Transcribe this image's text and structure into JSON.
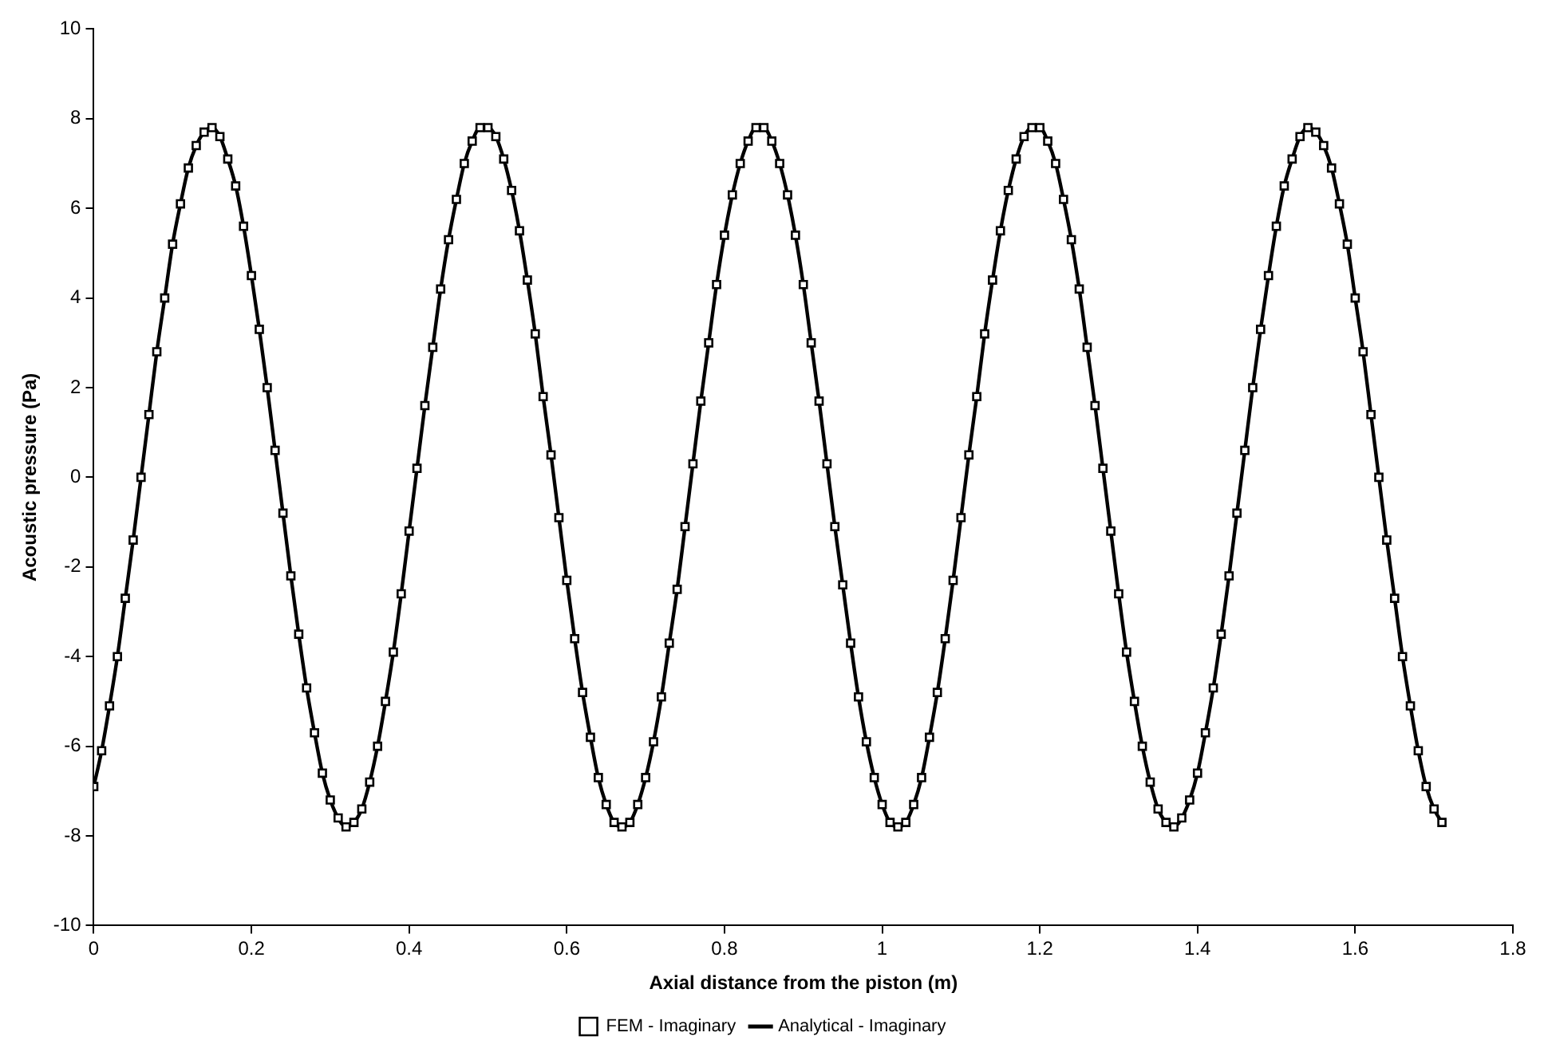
{
  "chart_data": {
    "type": "scatter",
    "xlabel": "Axial distance from the piston (m)",
    "ylabel": "Acoustic pressure (Pa)",
    "x": [
      0,
      0.01,
      0.02,
      0.03,
      0.04,
      0.05,
      0.06,
      0.07,
      0.08,
      0.09,
      0.1,
      0.11,
      0.12,
      0.13,
      0.14,
      0.15,
      0.16,
      0.17,
      0.18,
      0.19,
      0.2,
      0.21,
      0.22,
      0.23,
      0.24,
      0.25,
      0.26,
      0.27,
      0.28,
      0.29,
      0.3,
      0.31,
      0.32,
      0.33,
      0.34,
      0.35,
      0.36,
      0.37,
      0.38,
      0.39,
      0.4,
      0.41,
      0.42,
      0.43,
      0.44,
      0.45,
      0.46,
      0.47,
      0.48,
      0.49,
      0.5,
      0.51,
      0.52,
      0.53,
      0.54,
      0.55,
      0.56,
      0.57,
      0.58,
      0.59,
      0.6,
      0.61,
      0.62,
      0.63,
      0.64,
      0.65,
      0.66,
      0.67,
      0.68,
      0.69,
      0.7,
      0.71,
      0.72,
      0.73,
      0.74,
      0.75,
      0.76,
      0.77,
      0.78,
      0.79,
      0.8,
      0.81,
      0.82,
      0.83,
      0.84,
      0.85,
      0.86,
      0.87,
      0.88,
      0.89,
      0.9,
      0.91,
      0.92,
      0.93,
      0.94,
      0.95,
      0.96,
      0.97,
      0.98,
      0.99,
      1,
      1.01,
      1.02,
      1.03,
      1.04,
      1.05,
      1.06,
      1.07,
      1.08,
      1.09,
      1.1,
      1.11,
      1.12,
      1.13,
      1.14,
      1.15,
      1.16,
      1.17,
      1.18,
      1.19,
      1.2,
      1.21,
      1.22,
      1.23,
      1.24,
      1.25,
      1.26,
      1.27,
      1.28,
      1.29,
      1.3,
      1.31,
      1.32,
      1.33,
      1.34,
      1.35,
      1.36,
      1.37,
      1.38,
      1.39,
      1.4,
      1.41,
      1.42,
      1.43,
      1.44,
      1.45,
      1.46,
      1.47,
      1.48,
      1.49,
      1.5,
      1.51,
      1.52,
      1.53,
      1.54,
      1.55,
      1.56,
      1.57,
      1.58,
      1.59,
      1.6,
      1.61,
      1.62,
      1.63,
      1.64,
      1.65,
      1.66,
      1.67,
      1.68,
      1.69,
      1.7,
      1.71
    ],
    "series": [
      {
        "name": "FEM - Imaginary",
        "marker": "square",
        "color": "#000000",
        "values": [
          -6.9,
          -6.1,
          -5.1,
          -4.0,
          -2.7,
          -1.4,
          0.0,
          1.4,
          2.8,
          4.0,
          5.2,
          6.1,
          6.9,
          7.4,
          7.7,
          7.8,
          7.6,
          7.1,
          6.5,
          5.6,
          4.5,
          3.3,
          2.0,
          0.6,
          -0.8,
          -2.2,
          -3.5,
          -4.7,
          -5.7,
          -6.6,
          -7.2,
          -7.6,
          -7.8,
          -7.7,
          -7.4,
          -6.8,
          -6.0,
          -5.0,
          -3.9,
          -2.6,
          -1.2,
          0.2,
          1.6,
          2.9,
          4.2,
          5.3,
          6.2,
          7.0,
          7.5,
          7.8,
          7.8,
          7.6,
          7.1,
          6.4,
          5.5,
          4.4,
          3.2,
          1.8,
          0.5,
          -0.9,
          -2.3,
          -3.6,
          -4.8,
          -5.8,
          -6.7,
          -7.3,
          -7.7,
          -7.8,
          -7.7,
          -7.3,
          -6.7,
          -5.9,
          -4.9,
          -3.7,
          -2.5,
          -1.1,
          0.3,
          1.7,
          3.0,
          4.3,
          5.4,
          6.3,
          7.0,
          7.5,
          7.8,
          7.8,
          7.5,
          7.0,
          6.3,
          5.4,
          4.3,
          3.0,
          1.7,
          0.3,
          -1.1,
          -2.4,
          -3.7,
          -4.9,
          -5.9,
          -6.7,
          -7.3,
          -7.7,
          -7.8,
          -7.7,
          -7.3,
          -6.7,
          -5.8,
          -4.8,
          -3.6,
          -2.3,
          -0.9,
          0.5,
          1.8,
          3.2,
          4.4,
          5.5,
          6.4,
          7.1,
          7.6,
          7.8,
          7.8,
          7.5,
          7.0,
          6.2,
          5.3,
          4.2,
          2.9,
          1.6,
          0.2,
          -1.2,
          -2.6,
          -3.9,
          -5.0,
          -6.0,
          -6.8,
          -7.4,
          -7.7,
          -7.8,
          -7.6,
          -7.2,
          -6.6,
          -5.7,
          -4.7,
          -3.5,
          -2.2,
          -0.8,
          0.6,
          2.0,
          3.3,
          4.5,
          5.6,
          6.5,
          7.1,
          7.6,
          7.8,
          7.7,
          7.4,
          6.9,
          6.1,
          5.2,
          4.0,
          2.8,
          1.4,
          0.0,
          -1.4,
          -2.7,
          -4.0,
          -5.1,
          -6.1,
          -6.9,
          -7.4,
          -7.7
        ]
      },
      {
        "name": "Analytical - Imaginary",
        "type": "line",
        "marker": "none",
        "line_style": "solid",
        "color": "#000000",
        "values": [
          -6.9,
          -6.1,
          -5.1,
          -4.0,
          -2.7,
          -1.4,
          0.0,
          1.4,
          2.8,
          4.0,
          5.2,
          6.1,
          6.9,
          7.4,
          7.7,
          7.8,
          7.6,
          7.1,
          6.5,
          5.6,
          4.5,
          3.3,
          2.0,
          0.6,
          -0.8,
          -2.2,
          -3.5,
          -4.7,
          -5.7,
          -6.6,
          -7.2,
          -7.6,
          -7.8,
          -7.7,
          -7.4,
          -6.8,
          -6.0,
          -5.0,
          -3.9,
          -2.6,
          -1.2,
          0.2,
          1.6,
          2.9,
          4.2,
          5.3,
          6.2,
          7.0,
          7.5,
          7.8,
          7.8,
          7.6,
          7.1,
          6.4,
          5.5,
          4.4,
          3.2,
          1.8,
          0.5,
          -0.9,
          -2.3,
          -3.6,
          -4.8,
          -5.8,
          -6.7,
          -7.3,
          -7.7,
          -7.8,
          -7.7,
          -7.3,
          -6.7,
          -5.9,
          -4.9,
          -3.7,
          -2.5,
          -1.1,
          0.3,
          1.7,
          3.0,
          4.3,
          5.4,
          6.3,
          7.0,
          7.5,
          7.8,
          7.8,
          7.5,
          7.0,
          6.3,
          5.4,
          4.3,
          3.0,
          1.7,
          0.3,
          -1.1,
          -2.4,
          -3.7,
          -4.9,
          -5.9,
          -6.7,
          -7.3,
          -7.7,
          -7.8,
          -7.7,
          -7.3,
          -6.7,
          -5.8,
          -4.8,
          -3.6,
          -2.3,
          -0.9,
          0.5,
          1.8,
          3.2,
          4.4,
          5.5,
          6.4,
          7.1,
          7.6,
          7.8,
          7.8,
          7.5,
          7.0,
          6.2,
          5.3,
          4.2,
          2.9,
          1.6,
          0.2,
          -1.2,
          -2.6,
          -3.9,
          -5.0,
          -6.0,
          -6.8,
          -7.4,
          -7.7,
          -7.8,
          -7.6,
          -7.2,
          -6.6,
          -5.7,
          -4.7,
          -3.5,
          -2.2,
          -0.8,
          0.6,
          2.0,
          3.3,
          4.5,
          5.6,
          6.5,
          7.1,
          7.6,
          7.8,
          7.7,
          7.4,
          6.9,
          6.1,
          5.2,
          4.0,
          2.8,
          1.4,
          0.0,
          -1.4,
          -2.7,
          -4.0,
          -5.1,
          -6.1,
          -6.9,
          -7.4,
          -7.7
        ]
      }
    ],
    "xlim": [
      0,
      1.8
    ],
    "xticks": [
      0,
      0.2,
      0.4,
      0.6,
      0.8,
      1,
      1.2,
      1.4,
      1.6,
      1.8
    ],
    "ylim": [
      -10,
      10
    ],
    "yticks": [
      -10,
      -8,
      -6,
      -4,
      -2,
      0,
      2,
      4,
      6,
      8,
      10
    ],
    "grid": false,
    "legend": "bottom"
  }
}
